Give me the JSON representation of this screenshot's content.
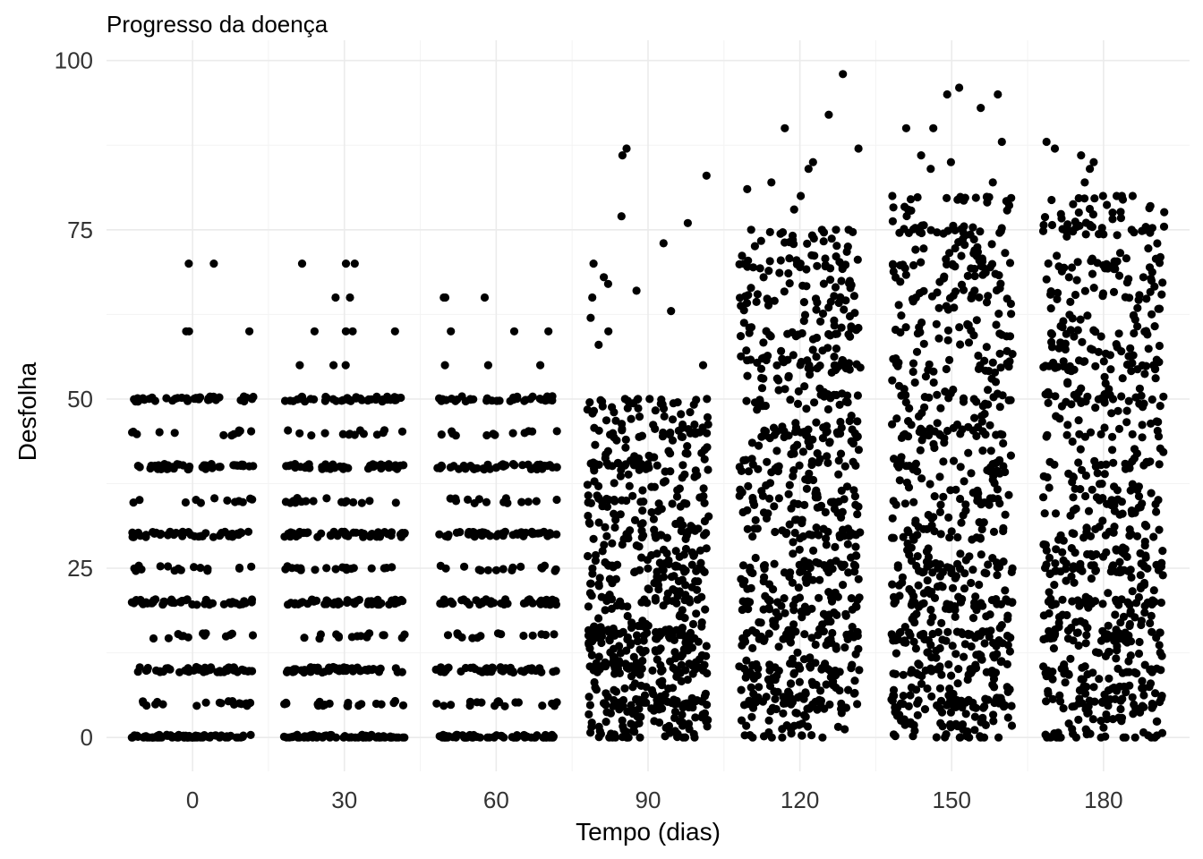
{
  "chart_data": {
    "type": "scatter",
    "title": "Progresso da doença",
    "xlabel": "Tempo (dias)",
    "ylabel": "Desfolha",
    "x_ticks": [
      0,
      30,
      60,
      90,
      120,
      150,
      180
    ],
    "y_ticks": [
      0,
      25,
      50,
      75,
      100
    ],
    "xlim": [
      -17,
      197
    ],
    "ylim": [
      -5,
      103
    ],
    "grid": true,
    "legend": "none",
    "point_color": "#000000",
    "jitter_width_days": 12,
    "groups": [
      {
        "x": 0,
        "pattern": "discrete levels every 5%, mostly 0-50",
        "levels": [
          0,
          5,
          10,
          15,
          20,
          25,
          30,
          35,
          40,
          45,
          50
        ],
        "approx_points_per_level": [
          70,
          18,
          55,
          14,
          50,
          16,
          45,
          12,
          45,
          12,
          38
        ],
        "outliers": [
          60,
          60,
          60,
          70,
          70
        ]
      },
      {
        "x": 30,
        "pattern": "discrete levels every 5%, mostly 0-50",
        "levels": [
          0,
          5,
          10,
          15,
          20,
          25,
          30,
          35,
          40,
          45,
          50
        ],
        "approx_points_per_level": [
          65,
          20,
          55,
          16,
          50,
          18,
          48,
          16,
          45,
          14,
          42
        ],
        "outliers": [
          55,
          55,
          55,
          60,
          60,
          60,
          60,
          65,
          65,
          70,
          70,
          70
        ]
      },
      {
        "x": 60,
        "pattern": "discrete levels every 5%, mostly 0-50",
        "levels": [
          0,
          5,
          10,
          15,
          20,
          25,
          30,
          35,
          40,
          45,
          50
        ],
        "approx_points_per_level": [
          62,
          18,
          52,
          15,
          48,
          16,
          45,
          14,
          42,
          12,
          38
        ],
        "outliers": [
          55,
          55,
          55,
          60,
          60,
          60,
          65,
          65,
          65
        ]
      },
      {
        "x": 90,
        "pattern": "continuous spread, dense 0-50, sparse to ~87",
        "dense_range": [
          0,
          50
        ],
        "approx_points": 650,
        "outliers": [
          55,
          58,
          60,
          62,
          63,
          65,
          66,
          67,
          68,
          70,
          73,
          76,
          77,
          83,
          86,
          87
        ]
      },
      {
        "x": 120,
        "pattern": "continuous spread, dense 0-75, sparse to ~98",
        "dense_range": [
          0,
          75
        ],
        "approx_points": 720,
        "outliers": [
          78,
          80,
          81,
          82,
          84,
          85,
          87,
          90,
          92,
          98
        ]
      },
      {
        "x": 150,
        "pattern": "continuous spread, dense 0-80, sparse to ~96",
        "dense_range": [
          0,
          80
        ],
        "approx_points": 720,
        "outliers": [
          82,
          84,
          85,
          86,
          88,
          90,
          90,
          93,
          95,
          95,
          96
        ]
      },
      {
        "x": 180,
        "pattern": "continuous spread, dense 0-80, sparse to ~88",
        "dense_range": [
          0,
          80
        ],
        "approx_points": 720,
        "outliers": [
          80,
          82,
          84,
          85,
          86,
          87,
          88
        ]
      }
    ]
  }
}
